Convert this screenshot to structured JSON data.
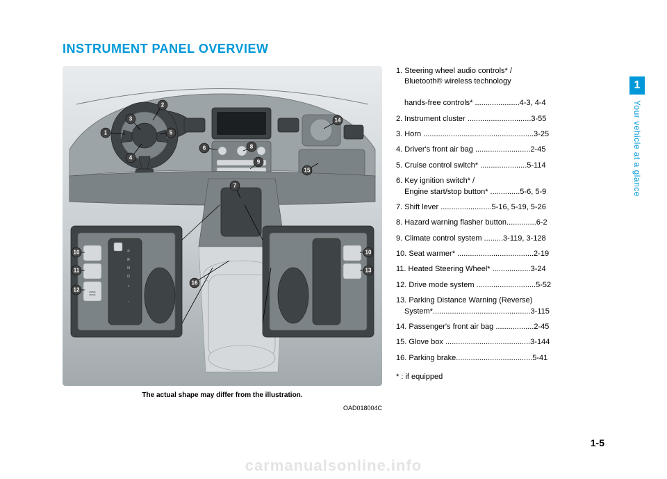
{
  "heading": "INSTRUMENT PANEL OVERVIEW",
  "caption": "The actual shape may differ from the illustration.",
  "figure_code": "OAD018004C",
  "page_number": "1-5",
  "tab": {
    "chapter": "1",
    "label": "Your vehicle at a glance"
  },
  "watermark": "carmanualsonline.info",
  "footnote": "* : if equipped",
  "callouts": [
    1,
    2,
    3,
    4,
    5,
    6,
    7,
    8,
    9,
    10,
    11,
    12,
    13,
    14,
    15,
    16
  ],
  "items": [
    {
      "n": "1.",
      "lines": [
        "Steering wheel audio controls* /",
        "Bluetooth® wireless technology",
        "hands-free controls* .....................4-3, 4-4"
      ]
    },
    {
      "n": "2.",
      "lines": [
        "Instrument cluster ..............................3-55"
      ]
    },
    {
      "n": "3.",
      "lines": [
        "Horn ....................................................3-25"
      ]
    },
    {
      "n": "4.",
      "lines": [
        "Driver's front air bag ..........................2-45"
      ]
    },
    {
      "n": "5.",
      "lines": [
        "Cruise control switch* ......................5-114"
      ]
    },
    {
      "n": "6.",
      "lines": [
        "Key ignition switch* /",
        "Engine start/stop button* ..............5-6, 5-9"
      ]
    },
    {
      "n": "7.",
      "lines": [
        "Shift lever ........................5-16, 5-19, 5-26"
      ]
    },
    {
      "n": "8.",
      "lines": [
        "Hazard warning flasher button..............6-2"
      ]
    },
    {
      "n": "9.",
      "lines": [
        "Climate control system .........3-119, 3-128"
      ]
    },
    {
      "n": "10.",
      "lines": [
        "Seat warmer* ....................................2-19"
      ]
    },
    {
      "n": "11.",
      "lines": [
        "Heated Steering Wheel* ..................3-24"
      ]
    },
    {
      "n": "12.",
      "lines": [
        "Drive mode system ............................5-52"
      ]
    },
    {
      "n": "13.",
      "lines": [
        "Parking Distance Warning (Reverse)",
        "System*..............................................3-115"
      ]
    },
    {
      "n": "14.",
      "lines": [
        "Passenger's front air bag ..................2-45"
      ]
    },
    {
      "n": "15.",
      "lines": [
        "Glove box ........................................3-144"
      ]
    },
    {
      "n": "16.",
      "lines": [
        "Parking brake....................................5-41"
      ]
    }
  ],
  "gear_letters": [
    "P",
    "R",
    "N",
    "D",
    "+",
    "",
    "-"
  ],
  "colors": {
    "accent": "#0098d9",
    "watermark": "#e4e4e4",
    "illus_bg_top": "#e9ecee",
    "illus_bg_bot": "#a2a9ad"
  }
}
